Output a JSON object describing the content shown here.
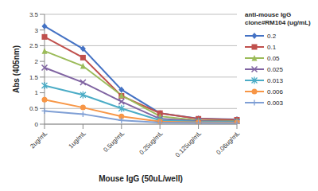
{
  "chart_data": {
    "type": "line",
    "x_label": "Mouse IgG (50uL/well)",
    "y_label": "Abs (405nm)",
    "legend_title": "anti-mouse IgG clone#RM104 (ug/mL)",
    "legend": "right",
    "grid": true,
    "categories": [
      "2ug/mL",
      "1ug/mL",
      "0.5ug/mL",
      "0.25ug/mL",
      "0.125ug/mL",
      "0.06ug/mL"
    ],
    "ylim": [
      0,
      3.5
    ],
    "yticks": [
      0,
      0.5,
      1,
      1.5,
      2,
      2.5,
      3,
      3.5
    ],
    "series": [
      {
        "name": "0.2",
        "color": "#4472c4",
        "marker": "diamond",
        "values": [
          3.12,
          2.4,
          1.1,
          0.35,
          0.18,
          0.15
        ]
      },
      {
        "name": "0.1",
        "color": "#c0504d",
        "marker": "square",
        "values": [
          2.78,
          2.12,
          0.9,
          0.35,
          0.17,
          0.14
        ]
      },
      {
        "name": "0.05",
        "color": "#9bbb59",
        "marker": "triangle",
        "values": [
          2.33,
          1.85,
          0.92,
          0.25,
          0.12,
          0.1
        ]
      },
      {
        "name": "0.025",
        "color": "#8064a2",
        "marker": "x",
        "values": [
          1.8,
          1.33,
          0.72,
          0.17,
          0.1,
          0.08
        ]
      },
      {
        "name": "0.013",
        "color": "#4bacc6",
        "marker": "star",
        "values": [
          1.23,
          0.93,
          0.5,
          0.12,
          0.08,
          0.07
        ]
      },
      {
        "name": "0.006",
        "color": "#f79646",
        "marker": "circle",
        "values": [
          0.78,
          0.53,
          0.25,
          0.08,
          0.06,
          0.05
        ]
      },
      {
        "name": "0.003",
        "color": "#7f9fd5",
        "marker": "plus",
        "values": [
          0.42,
          0.32,
          0.12,
          0.05,
          0.04,
          0.03
        ]
      }
    ]
  }
}
